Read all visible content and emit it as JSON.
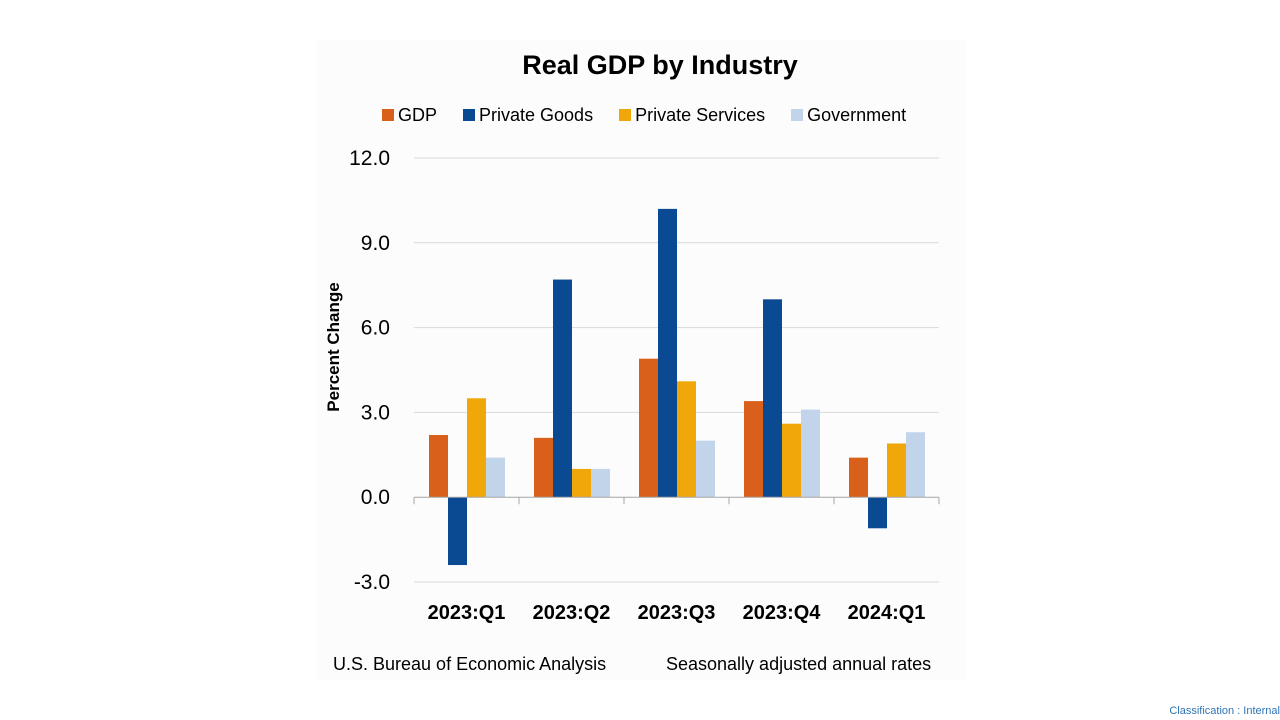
{
  "chart_data": {
    "type": "bar",
    "title": "Real GDP by Industry",
    "ylabel": "Percent Change",
    "xlabel": "",
    "categories": [
      "2023:Q1",
      "2023:Q2",
      "2023:Q3",
      "2023:Q4",
      "2024:Q1"
    ],
    "series": [
      {
        "name": "GDP",
        "color": "#d9601a",
        "values": [
          2.2,
          2.1,
          4.9,
          3.4,
          1.4
        ]
      },
      {
        "name": "Private Goods",
        "color": "#0a4a93",
        "values": [
          -2.4,
          7.7,
          10.2,
          7.0,
          -1.1
        ]
      },
      {
        "name": "Private Services",
        "color": "#f0a70a",
        "values": [
          3.5,
          1.0,
          4.1,
          2.6,
          1.9
        ]
      },
      {
        "name": "Government",
        "color": "#c2d4ea",
        "values": [
          1.4,
          1.0,
          2.0,
          3.1,
          2.3
        ]
      }
    ],
    "ylim": [
      -3.0,
      12.0
    ],
    "yticks": [
      "12.0",
      "9.0",
      "6.0",
      "3.0",
      "0.0",
      "-3.0"
    ],
    "ytick_values": [
      12,
      9,
      6,
      3,
      0,
      -3
    ],
    "grid": true,
    "legend": "top"
  },
  "footer": {
    "source": "U.S. Bureau of Economic Analysis",
    "note": "Seasonally adjusted annual rates"
  },
  "classification": "Classification : Internal"
}
